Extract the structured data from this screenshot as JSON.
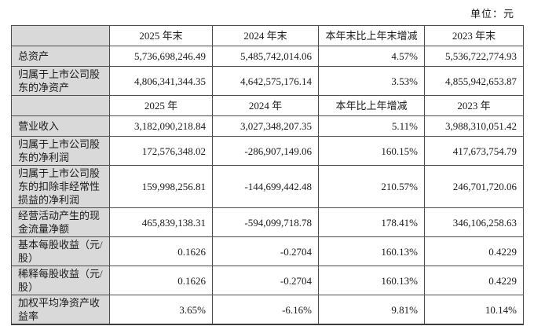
{
  "page": {
    "unit_label": "单位：元"
  },
  "colors": {
    "row_label_bg": "#d9d9d9",
    "table_border": "#4d4d4d",
    "text": "#1a1a1a",
    "page_bg": "#ffffff"
  },
  "table": {
    "rows": [
      {
        "type": "header",
        "label": "",
        "c1": "2025 年末",
        "c2": "2024 年末",
        "c3": "本年末比上年末增减",
        "c4": "2023 年末"
      },
      {
        "type": "data",
        "label": "总资产",
        "c1": "5,736,698,246.49",
        "c2": "5,485,742,014.06",
        "c3": "4.57%",
        "c4": "5,536,722,774.93"
      },
      {
        "type": "data",
        "label": "归属于上市公司股东的净资产",
        "c1": "4,806,341,344.35",
        "c2": "4,642,575,176.14",
        "c3": "3.53%",
        "c4": "4,855,942,653.87"
      },
      {
        "type": "header",
        "label": "",
        "c1": "2025 年",
        "c2": "2024 年",
        "c3": "本年比上年增减",
        "c4": "2023 年"
      },
      {
        "type": "data",
        "label": "营业收入",
        "c1": "3,182,090,218.84",
        "c2": "3,027,348,207.35",
        "c3": "5.11%",
        "c4": "3,988,310,051.42"
      },
      {
        "type": "data",
        "label": "归属于上市公司股东的净利润",
        "c1": "172,576,348.02",
        "c2": "-286,907,149.06",
        "c3": "160.15%",
        "c4": "417,673,754.79"
      },
      {
        "type": "data",
        "label": "归属于上市公司股东的扣除非经常性损益的净利润",
        "c1": "159,998,256.81",
        "c2": "-144,699,442.48",
        "c3": "210.57%",
        "c4": "246,701,720.06"
      },
      {
        "type": "data",
        "label": "经营活动产生的现金流量净额",
        "c1": "465,839,138.31",
        "c2": "-594,099,718.78",
        "c3": "178.41%",
        "c4": "346,106,258.63"
      },
      {
        "type": "data",
        "label": "基本每股收益（元/股）",
        "c1": "0.1626",
        "c2": "-0.2704",
        "c3": "160.13%",
        "c4": "0.4229"
      },
      {
        "type": "data",
        "label": "稀释每股收益（元/股）",
        "c1": "0.1626",
        "c2": "-0.2704",
        "c3": "160.13%",
        "c4": "0.4229"
      },
      {
        "type": "data",
        "label": "加权平均净资产收益率",
        "c1": "3.65%",
        "c2": "-6.16%",
        "c3": "9.81%",
        "c4": "10.14%"
      }
    ]
  }
}
